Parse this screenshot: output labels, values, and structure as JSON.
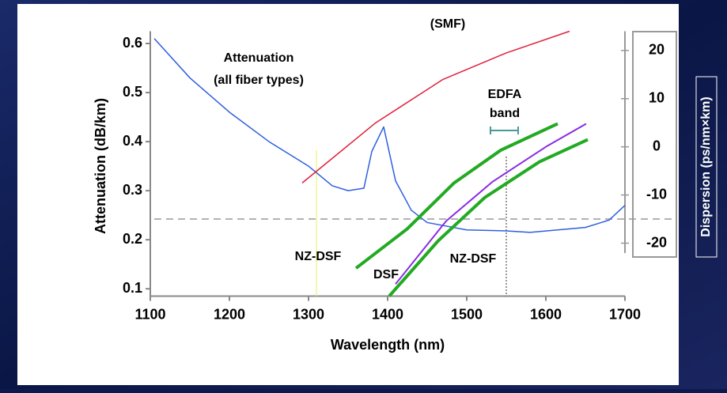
{
  "chart_data": {
    "type": "line",
    "xlabel": "Wavelength (nm)",
    "ylabel": "Attenuation (dB/km)",
    "y2label": "Dispersion (ps/nm×km)",
    "xlim": [
      1100,
      1700
    ],
    "xticks": [
      1100,
      1200,
      1300,
      1400,
      1500,
      1600,
      1700
    ],
    "ylim": [
      0.085,
      0.625
    ],
    "yticks": [
      0.1,
      0.2,
      0.3,
      0.4,
      0.5,
      0.6
    ],
    "y2lim": [
      -31,
      24
    ],
    "y2ticks": [
      -20,
      -10,
      0,
      10,
      20
    ],
    "series": [
      {
        "color": "#2f5fe0",
        "width": 1.5,
        "x": [
          1105,
          1150,
          1200,
          1250,
          1300,
          1330,
          1350,
          1370,
          1380,
          1395,
          1410,
          1430,
          1450,
          1500,
          1550,
          1580,
          1650,
          1680,
          1700
        ],
        "values": [
          0.61,
          0.53,
          0.46,
          0.4,
          0.35,
          0.31,
          0.3,
          0.305,
          0.38,
          0.43,
          0.32,
          0.26,
          0.235,
          0.22,
          0.218,
          0.215,
          0.225,
          0.24,
          0.27
        ]
      },
      {
        "color": "#e0203a",
        "width": 1.5,
        "axis": "y2",
        "x": [
          1292,
          1385,
          1470,
          1550,
          1630
        ],
        "values": [
          -7.5,
          5,
          14,
          19.5,
          24
        ]
      },
      {
        "color": "#22aa22",
        "width": 4,
        "axis": "y2",
        "x": [
          1360,
          1425,
          1484,
          1543,
          1615
        ],
        "values": [
          -25.2,
          -17,
          -7.5,
          -0.7,
          4.8
        ]
      },
      {
        "color": "#8a2be2",
        "width": 2,
        "axis": "y2",
        "x": [
          1410,
          1474,
          1533,
          1602,
          1651
        ],
        "values": [
          -28.5,
          -15.4,
          -7.2,
          0.2,
          4.8
        ]
      },
      {
        "color": "#22aa22",
        "width": 4,
        "axis": "y2",
        "x": [
          1402,
          1464,
          1523,
          1592,
          1653
        ],
        "values": [
          -31,
          -19.5,
          -10.5,
          -3.1,
          1.5
        ]
      }
    ],
    "vlines": [
      1310,
      1550
    ],
    "y2_hline": -15,
    "edfa_band": [
      1530,
      1565
    ],
    "annotations": [
      "(SMF)",
      "Attenuation",
      "(all fiber types)",
      "EDFA",
      "band",
      "NZ-DSF",
      "DSF",
      "NZ-DSF"
    ]
  }
}
